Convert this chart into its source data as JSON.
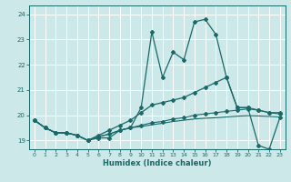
{
  "xlabel": "Humidex (Indice chaleur)",
  "xlim": [
    -0.5,
    23.5
  ],
  "ylim": [
    18.65,
    24.35
  ],
  "yticks": [
    19,
    20,
    21,
    22,
    23,
    24
  ],
  "xticks": [
    0,
    1,
    2,
    3,
    4,
    5,
    6,
    7,
    8,
    9,
    10,
    11,
    12,
    13,
    14,
    15,
    16,
    17,
    18,
    19,
    20,
    21,
    22,
    23
  ],
  "bg_color": "#cde8e8",
  "line_color": "#1a6868",
  "grid_color": "#b8d8d8",
  "series1": [
    19.8,
    19.5,
    19.3,
    19.3,
    19.2,
    19.0,
    19.1,
    19.1,
    19.4,
    19.5,
    20.3,
    23.3,
    21.5,
    22.5,
    22.2,
    23.7,
    23.8,
    23.2,
    21.5,
    20.3,
    20.3,
    18.8,
    18.65,
    19.9
  ],
  "series2": [
    19.8,
    19.5,
    19.3,
    19.3,
    19.2,
    19.0,
    19.2,
    19.4,
    19.6,
    19.8,
    20.1,
    20.4,
    20.5,
    20.6,
    20.7,
    20.9,
    21.1,
    21.3,
    21.5,
    20.3,
    20.3,
    20.2,
    20.1,
    20.1
  ],
  "series3": [
    19.8,
    19.5,
    19.3,
    19.3,
    19.2,
    19.0,
    19.15,
    19.25,
    19.4,
    19.5,
    19.6,
    19.7,
    19.75,
    19.85,
    19.9,
    20.0,
    20.05,
    20.1,
    20.15,
    20.2,
    20.25,
    20.2,
    20.1,
    20.05
  ],
  "series4": [
    19.8,
    19.5,
    19.3,
    19.3,
    19.2,
    19.0,
    19.15,
    19.25,
    19.4,
    19.5,
    19.55,
    19.62,
    19.68,
    19.75,
    19.8,
    19.85,
    19.88,
    19.9,
    19.93,
    19.96,
    19.98,
    19.97,
    19.95,
    19.93
  ]
}
